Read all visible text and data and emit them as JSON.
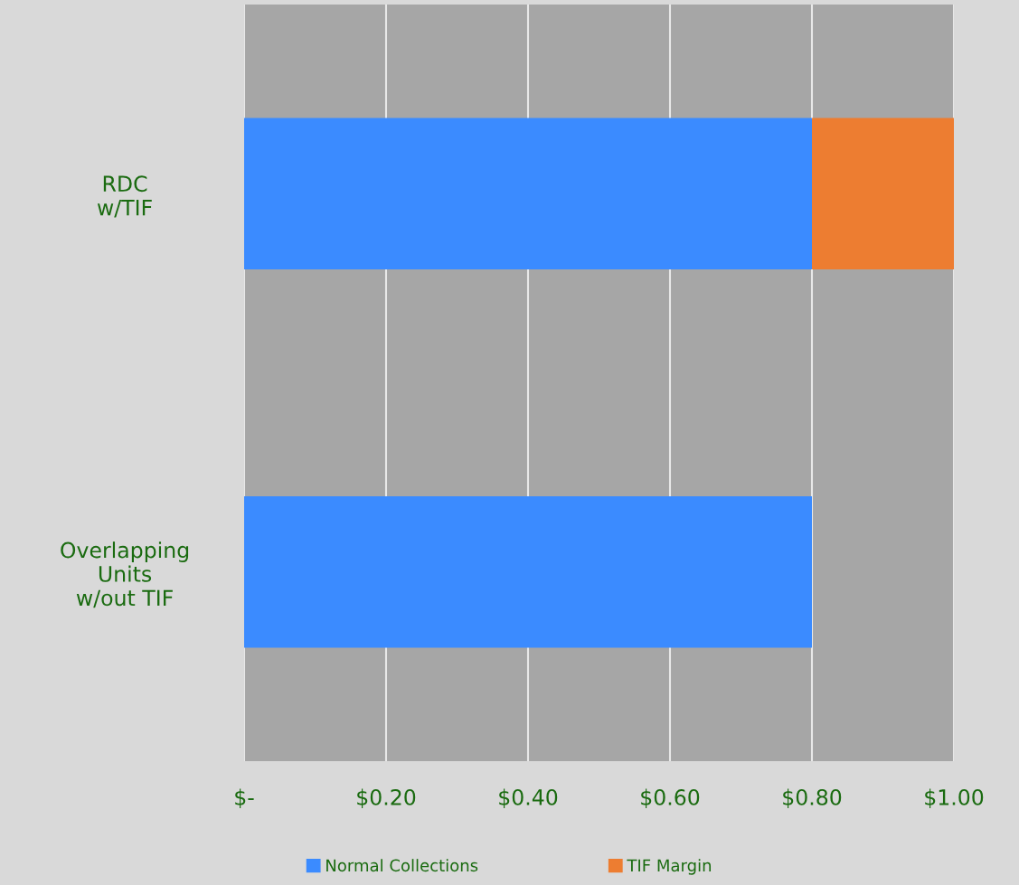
{
  "chart_data": {
    "type": "bar",
    "orientation": "horizontal",
    "stacked": true,
    "categories": [
      "RDC\nw/TIF",
      "Overlapping\nUnits\nw/out TIF"
    ],
    "series": [
      {
        "name": "Normal Collections",
        "color": "#3b8bff",
        "values": [
          0.8,
          0.8
        ]
      },
      {
        "name": "TIF Margin",
        "color": "#ed7d31",
        "values": [
          0.2,
          null
        ]
      }
    ],
    "xlim": [
      0,
      1
    ],
    "xticks": [
      {
        "value": 0,
        "label": "$-"
      },
      {
        "value": 0.2,
        "label": "$0.20"
      },
      {
        "value": 0.4,
        "label": "$0.40"
      },
      {
        "value": 0.6,
        "label": "$0.60"
      },
      {
        "value": 0.8,
        "label": "$0.80"
      },
      {
        "value": 1,
        "label": "$1.00"
      }
    ],
    "grid": "x",
    "legend": "bottom"
  }
}
